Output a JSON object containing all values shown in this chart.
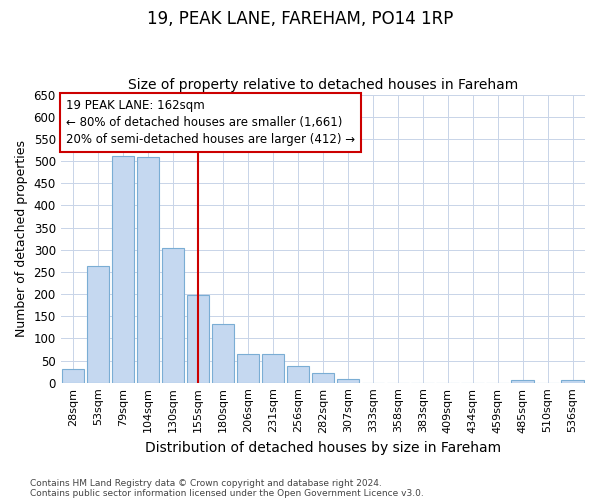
{
  "title1": "19, PEAK LANE, FAREHAM, PO14 1RP",
  "title2": "Size of property relative to detached houses in Fareham",
  "xlabel": "Distribution of detached houses by size in Fareham",
  "ylabel": "Number of detached properties",
  "categories": [
    "28sqm",
    "53sqm",
    "79sqm",
    "104sqm",
    "130sqm",
    "155sqm",
    "180sqm",
    "206sqm",
    "231sqm",
    "256sqm",
    "282sqm",
    "307sqm",
    "333sqm",
    "358sqm",
    "383sqm",
    "409sqm",
    "434sqm",
    "459sqm",
    "485sqm",
    "510sqm",
    "536sqm"
  ],
  "values": [
    31,
    263,
    512,
    510,
    303,
    197,
    132,
    65,
    65,
    38,
    22,
    8,
    0,
    0,
    0,
    0,
    0,
    0,
    5,
    0,
    5
  ],
  "bar_color": "#c5d8f0",
  "bar_edge_color": "#7aadd4",
  "grid_color": "#c8d4e8",
  "vline_x": 5,
  "vline_color": "#cc0000",
  "annotation_box_text": "19 PEAK LANE: 162sqm\n← 80% of detached houses are smaller (1,661)\n20% of semi-detached houses are larger (412) →",
  "annotation_box_color": "#cc0000",
  "ylim": [
    0,
    650
  ],
  "yticks": [
    0,
    50,
    100,
    150,
    200,
    250,
    300,
    350,
    400,
    450,
    500,
    550,
    600,
    650
  ],
  "footnote1": "Contains HM Land Registry data © Crown copyright and database right 2024.",
  "footnote2": "Contains public sector information licensed under the Open Government Licence v3.0.",
  "bg_color": "#ffffff",
  "plot_bg_color": "#ffffff",
  "title1_fontsize": 12,
  "title2_fontsize": 10,
  "annotation_fontsize": 8.5,
  "ylabel_fontsize": 9,
  "xlabel_fontsize": 10
}
